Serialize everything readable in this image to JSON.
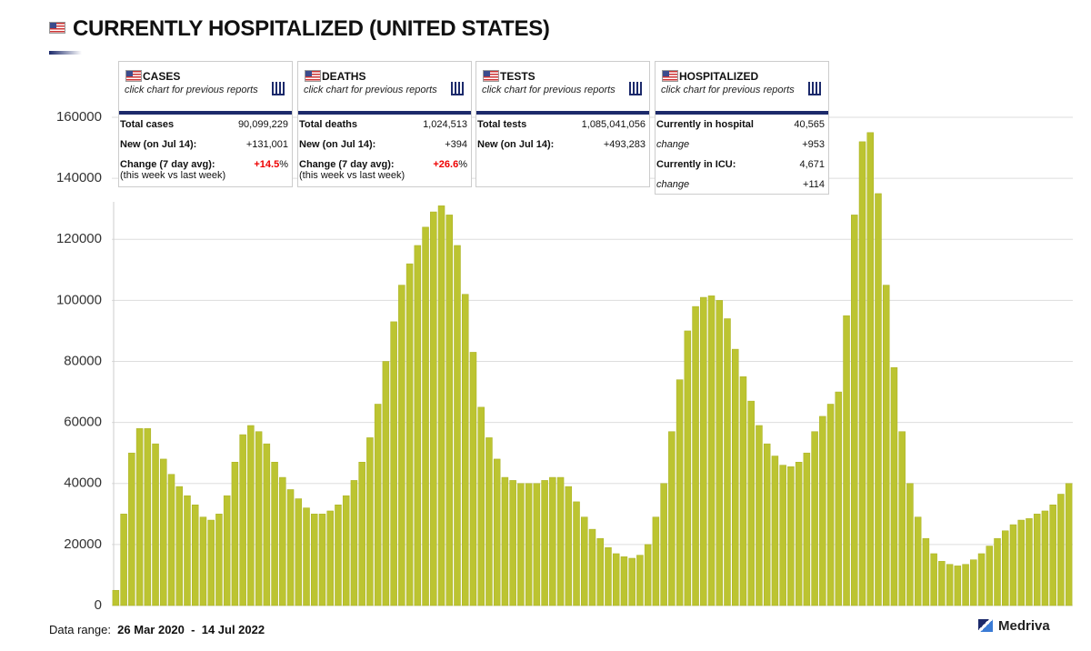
{
  "header": {
    "title": "CURRENTLY HOSPITALIZED (UNITED STATES)"
  },
  "cards": [
    {
      "title": "CASES",
      "subtitle": "click chart for previous reports",
      "rows": [
        {
          "label": "Total cases",
          "value": "90,099,229"
        },
        {
          "label": "New (on Jul 14):",
          "value": "+131,001"
        },
        {
          "label": "Change (7 day avg):",
          "note": "(this week vs last week)",
          "value": "+14.5",
          "unit": "%"
        }
      ]
    },
    {
      "title": "DEATHS",
      "subtitle": "click chart for previous reports",
      "rows": [
        {
          "label": "Total deaths",
          "value": "1,024,513"
        },
        {
          "label": "New (on Jul 14):",
          "value": "+394"
        },
        {
          "label": "Change (7 day avg):",
          "note": "(this week vs last week)",
          "value": "+26.6",
          "unit": "%"
        }
      ]
    },
    {
      "title": "TESTS",
      "subtitle": "click chart for previous reports",
      "rows": [
        {
          "label": "Total tests",
          "value": "1,085,041,056"
        },
        {
          "label": "New (on Jul 14):",
          "value": "+493,283"
        }
      ]
    },
    {
      "title": "HOSPITALIZED",
      "subtitle": "click chart for previous reports",
      "rows": [
        {
          "label": "Currently in hospital",
          "value": "40,565"
        },
        {
          "label": "change",
          "value": "+953"
        },
        {
          "label": "Currently in ICU:",
          "value": "4,671"
        },
        {
          "label": "change",
          "value": "+114"
        }
      ]
    }
  ],
  "chart_data": {
    "type": "bar",
    "color": "#bcc431",
    "grid": true,
    "ylim": [
      0,
      160000
    ],
    "yticks": [
      0,
      20000,
      40000,
      60000,
      80000,
      100000,
      120000,
      140000,
      160000
    ],
    "values": [
      5000,
      30000,
      50000,
      58000,
      58000,
      53000,
      48000,
      43000,
      39000,
      36000,
      33000,
      29000,
      28000,
      30000,
      36000,
      47000,
      56000,
      59000,
      57000,
      53000,
      47000,
      42000,
      38000,
      35000,
      32000,
      30000,
      30000,
      31000,
      33000,
      36000,
      41000,
      47000,
      55000,
      66000,
      80000,
      93000,
      105000,
      112000,
      118000,
      124000,
      129000,
      131000,
      128000,
      118000,
      102000,
      83000,
      65000,
      55000,
      48000,
      42000,
      41000,
      40000,
      40000,
      40000,
      41000,
      42000,
      42000,
      39000,
      34000,
      29000,
      25000,
      22000,
      19000,
      17000,
      16000,
      15500,
      16500,
      20000,
      29000,
      40000,
      57000,
      74000,
      90000,
      98000,
      101000,
      101500,
      100000,
      94000,
      84000,
      75000,
      67000,
      59000,
      53000,
      49000,
      46000,
      45500,
      47000,
      50000,
      57000,
      62000,
      66000,
      70000,
      95000,
      128000,
      152000,
      155000,
      135000,
      105000,
      78000,
      57000,
      40000,
      29000,
      22000,
      17000,
      14500,
      13500,
      13000,
      13500,
      15000,
      17000,
      19500,
      22000,
      24500,
      26500,
      28000,
      28500,
      30000,
      31000,
      33000,
      36500,
      40000
    ]
  },
  "footer": {
    "label": "Data range:",
    "start": "26 Mar 2020",
    "separator": "-",
    "end": "14 Jul 2022"
  },
  "logo": "Medriva"
}
